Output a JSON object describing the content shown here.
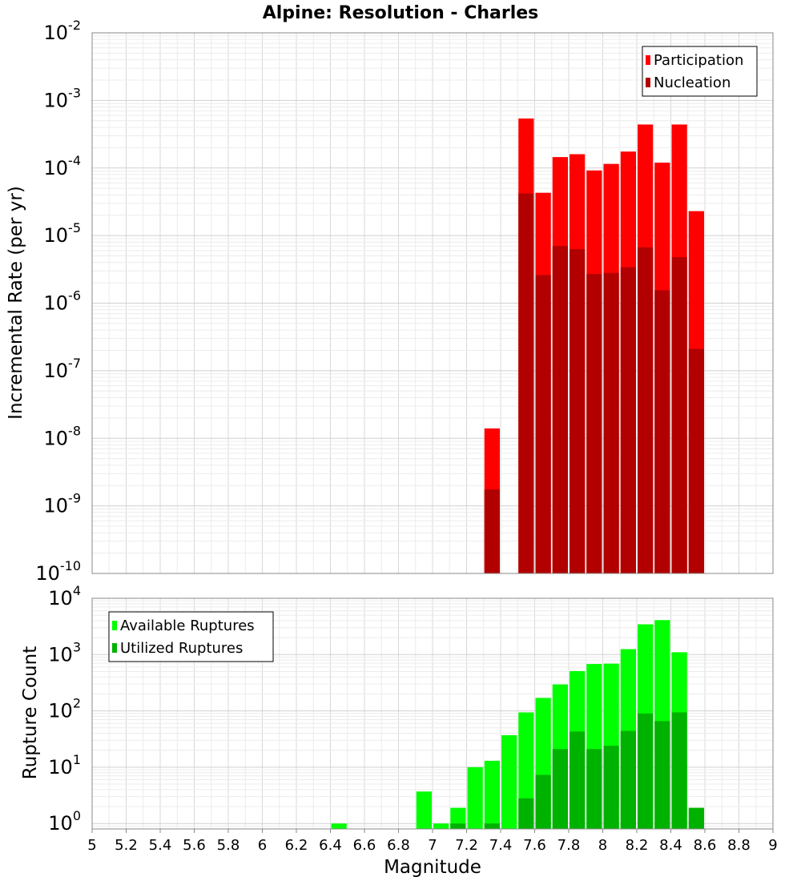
{
  "chart_data": {
    "title": "Alpine: Resolution - Charles",
    "xlabel": "Magnitude",
    "xlim": [
      5,
      9
    ],
    "x_ticks": [
      "5",
      "5.2",
      "5.4",
      "5.6",
      "5.8",
      "6",
      "6.2",
      "6.4",
      "6.6",
      "6.8",
      "7",
      "7.2",
      "7.4",
      "7.6",
      "7.8",
      "8",
      "8.2",
      "8.4",
      "8.6",
      "8.8",
      "9"
    ],
    "bin_width": 0.1,
    "panels": [
      {
        "type": "bar",
        "ylabel": "Incremental Rate (per yr)",
        "yscale": "log",
        "ylim": [
          1e-10,
          0.01
        ],
        "y_tick_exponents": [
          -10,
          -9,
          -8,
          -7,
          -6,
          -5,
          -4,
          -3,
          -2
        ],
        "legend_position": "top-right",
        "grid": true,
        "x": [
          7.35,
          7.55,
          7.65,
          7.75,
          7.85,
          7.95,
          8.05,
          8.15,
          8.25,
          8.35,
          8.45,
          8.55
        ],
        "series": [
          {
            "name": "Participation",
            "color": "#ff0000",
            "values": [
              1.4e-08,
              0.00054,
              4.3e-05,
              0.000145,
              0.00016,
              9.2e-05,
              0.000115,
              0.000175,
              0.00044,
              0.00012,
              0.00044,
              2.3e-05
            ]
          },
          {
            "name": "Nucleation",
            "color": "#b20000",
            "values": [
              1.75e-09,
              4.2e-05,
              2.6e-06,
              7e-06,
              6.3e-06,
              2.7e-06,
              2.8e-06,
              3.4e-06,
              6.7e-06,
              1.55e-06,
              4.8e-06,
              2.1e-07
            ]
          }
        ]
      },
      {
        "type": "bar",
        "ylabel": "Rupture Count",
        "yscale": "log",
        "ylim": [
          0.8,
          10000
        ],
        "y_tick_exponents": [
          0,
          1,
          2,
          3,
          4
        ],
        "legend_position": "top-left",
        "grid": true,
        "x": [
          6.45,
          6.95,
          7.05,
          7.15,
          7.25,
          7.35,
          7.45,
          7.55,
          7.65,
          7.75,
          7.85,
          7.95,
          8.05,
          8.15,
          8.25,
          8.35,
          8.45,
          8.55
        ],
        "series": [
          {
            "name": "Available Ruptures",
            "color": "#00ff00",
            "values": [
              1,
              3.7,
              1,
              1.9,
              10,
              13,
              37,
              94,
              170,
              295,
              510,
              680,
              690,
              1250,
              3450,
              4100,
              1100,
              null
            ]
          },
          {
            "name": "Utilized Ruptures",
            "color": "#00b200",
            "values": [
              null,
              null,
              null,
              1,
              null,
              1,
              null,
              2.8,
              7.3,
              21,
              43,
              21,
              24,
              44,
              90,
              66,
              94,
              1.9
            ]
          }
        ]
      }
    ]
  }
}
